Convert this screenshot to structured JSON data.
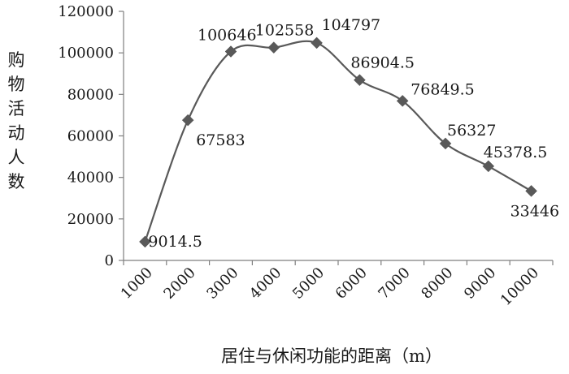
{
  "chart_data": {
    "type": "line",
    "title": "",
    "xlabel": "居住与休闲功能的距离（m）",
    "ylabel": "购物活动人数",
    "categories": [
      "1000",
      "2000",
      "3000",
      "4000",
      "5000",
      "6000",
      "7000",
      "8000",
      "9000",
      "10000"
    ],
    "series": [
      {
        "values": [
          9014.5,
          67583,
          100646,
          102558,
          104797,
          86904.5,
          76849.5,
          56327,
          45378.5,
          33446
        ],
        "labels": [
          "9014.5",
          "67583",
          "100646",
          "102558",
          "104797",
          "86904.5",
          "76849.5",
          "56327",
          "45378.5",
          "33446"
        ]
      }
    ],
    "ylim": [
      0,
      120000
    ],
    "yticks": [
      "0",
      "20000",
      "40000",
      "60000",
      "80000",
      "100000",
      "120000"
    ],
    "grid": false,
    "legend": false,
    "line_color": "#595959",
    "marker": "diamond",
    "smooth": true
  }
}
